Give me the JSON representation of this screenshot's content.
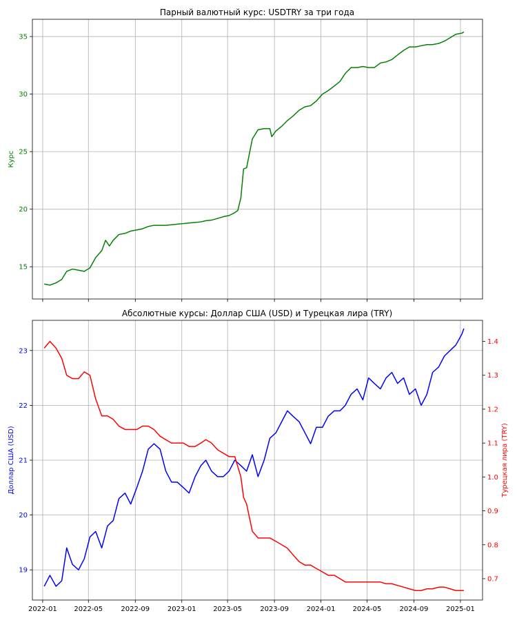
{
  "colors": {
    "pair": "#008000",
    "usd": "#0000ff",
    "try": "#ff0000",
    "grid": "#b0b0b0"
  },
  "chart_data": [
    {
      "type": "line",
      "title": "Парный валютный курс: USDTRY за три года",
      "ylabel": "Курс",
      "xlabel": "",
      "grid": true,
      "ylim": [
        12.2,
        36.5
      ],
      "yticks": [
        "15",
        "20",
        "25",
        "30",
        "35"
      ],
      "series": [
        {
          "color": "#008000",
          "x": [
            "2022-01-05",
            "2022-01-20",
            "2022-02-05",
            "2022-02-20",
            "2022-03-05",
            "2022-03-20",
            "2022-04-05",
            "2022-04-20",
            "2022-05-05",
            "2022-05-20",
            "2022-06-05",
            "2022-06-15",
            "2022-06-25",
            "2022-07-05",
            "2022-07-20",
            "2022-08-05",
            "2022-08-20",
            "2022-09-05",
            "2022-09-20",
            "2022-10-05",
            "2022-10-20",
            "2022-11-05",
            "2022-11-20",
            "2022-12-05",
            "2022-12-20",
            "2023-01-05",
            "2023-01-20",
            "2023-02-05",
            "2023-02-20",
            "2023-03-05",
            "2023-03-20",
            "2023-04-05",
            "2023-04-20",
            "2023-05-05",
            "2023-05-20",
            "2023-05-28",
            "2023-06-05",
            "2023-06-12",
            "2023-06-20",
            "2023-07-05",
            "2023-07-20",
            "2023-08-05",
            "2023-08-20",
            "2023-08-25",
            "2023-09-05",
            "2023-09-20",
            "2023-10-05",
            "2023-10-20",
            "2023-11-05",
            "2023-11-20",
            "2023-12-05",
            "2023-12-20",
            "2024-01-05",
            "2024-01-20",
            "2024-02-05",
            "2024-02-20",
            "2024-03-05",
            "2024-03-20",
            "2024-04-05",
            "2024-04-20",
            "2024-05-05",
            "2024-05-20",
            "2024-06-05",
            "2024-06-20",
            "2024-07-05",
            "2024-07-20",
            "2024-08-05",
            "2024-08-20",
            "2024-09-05",
            "2024-09-20",
            "2024-10-05",
            "2024-10-20",
            "2024-11-05",
            "2024-11-20",
            "2024-12-05",
            "2024-12-20",
            "2025-01-05",
            "2025-01-10"
          ],
          "values": [
            13.5,
            13.4,
            13.6,
            13.9,
            14.6,
            14.8,
            14.7,
            14.6,
            14.9,
            15.8,
            16.4,
            17.3,
            16.8,
            17.3,
            17.8,
            17.9,
            18.1,
            18.2,
            18.3,
            18.5,
            18.6,
            18.6,
            18.6,
            18.65,
            18.7,
            18.75,
            18.8,
            18.85,
            18.9,
            19.0,
            19.05,
            19.2,
            19.35,
            19.45,
            19.7,
            19.9,
            21.0,
            23.5,
            23.6,
            26.1,
            26.9,
            27.0,
            27.0,
            26.3,
            26.8,
            27.2,
            27.7,
            28.1,
            28.6,
            28.9,
            29.0,
            29.4,
            30.0,
            30.3,
            30.7,
            31.1,
            31.8,
            32.3,
            32.3,
            32.4,
            32.3,
            32.3,
            32.7,
            32.8,
            33.0,
            33.4,
            33.8,
            34.1,
            34.1,
            34.2,
            34.3,
            34.3,
            34.4,
            34.6,
            34.9,
            35.2,
            35.3,
            35.4
          ]
        }
      ]
    },
    {
      "type": "line",
      "title": "Абсолютные курсы: Доллар США (USD) и Турецкая лира (TRY)",
      "ylabel": "Доллар США (USD)",
      "ylabel_right": "Турецкая лира (TRY)",
      "xlabel": "",
      "grid": true,
      "ylim": [
        18.45,
        23.55
      ],
      "ylim_right": [
        0.637,
        1.462
      ],
      "yticks": [
        "19",
        "20",
        "21",
        "22",
        "23"
      ],
      "yticks_right": [
        "0.7",
        "0.8",
        "0.9",
        "1.0",
        "1.1",
        "1.2",
        "1.3",
        "1.4"
      ],
      "xticks": [
        "2022-01",
        "2022-05",
        "2022-09",
        "2023-01",
        "2023-05",
        "2023-09",
        "2024-01",
        "2024-05",
        "2024-09",
        "2025-01"
      ],
      "series": [
        {
          "color": "#0000ff",
          "axis": "left",
          "x": [
            "2022-01-05",
            "2022-01-20",
            "2022-02-05",
            "2022-02-20",
            "2022-03-05",
            "2022-03-20",
            "2022-04-05",
            "2022-04-20",
            "2022-05-05",
            "2022-05-20",
            "2022-06-05",
            "2022-06-20",
            "2022-07-05",
            "2022-07-20",
            "2022-08-05",
            "2022-08-20",
            "2022-09-05",
            "2022-09-20",
            "2022-10-05",
            "2022-10-20",
            "2022-11-05",
            "2022-11-20",
            "2022-12-05",
            "2022-12-20",
            "2023-01-05",
            "2023-01-20",
            "2023-02-05",
            "2023-02-20",
            "2023-03-05",
            "2023-03-20",
            "2023-04-05",
            "2023-04-20",
            "2023-05-05",
            "2023-05-20",
            "2023-06-05",
            "2023-06-20",
            "2023-07-05",
            "2023-07-20",
            "2023-08-05",
            "2023-08-20",
            "2023-09-05",
            "2023-09-20",
            "2023-10-05",
            "2023-10-20",
            "2023-11-05",
            "2023-11-20",
            "2023-12-05",
            "2023-12-20",
            "2024-01-05",
            "2024-01-20",
            "2024-02-05",
            "2024-02-20",
            "2024-03-05",
            "2024-03-20",
            "2024-04-05",
            "2024-04-20",
            "2024-05-05",
            "2024-05-20",
            "2024-06-05",
            "2024-06-20",
            "2024-07-05",
            "2024-07-20",
            "2024-08-05",
            "2024-08-20",
            "2024-09-05",
            "2024-09-20",
            "2024-10-05",
            "2024-10-20",
            "2024-11-05",
            "2024-11-20",
            "2024-12-05",
            "2024-12-20",
            "2025-01-05",
            "2025-01-10"
          ],
          "values": [
            18.7,
            18.9,
            18.7,
            18.8,
            19.4,
            19.1,
            19.0,
            19.2,
            19.6,
            19.7,
            19.4,
            19.8,
            19.9,
            20.3,
            20.4,
            20.2,
            20.5,
            20.8,
            21.2,
            21.3,
            21.2,
            20.8,
            20.6,
            20.6,
            20.5,
            20.4,
            20.7,
            20.9,
            21.0,
            20.8,
            20.7,
            20.7,
            20.8,
            21.0,
            20.9,
            20.8,
            21.1,
            20.7,
            21.0,
            21.4,
            21.5,
            21.7,
            21.9,
            21.8,
            21.7,
            21.5,
            21.3,
            21.6,
            21.6,
            21.8,
            21.9,
            21.9,
            22.0,
            22.2,
            22.3,
            22.1,
            22.5,
            22.4,
            22.3,
            22.5,
            22.6,
            22.4,
            22.5,
            22.2,
            22.3,
            22.0,
            22.2,
            22.6,
            22.7,
            22.9,
            23.0,
            23.1,
            23.3,
            23.4
          ]
        },
        {
          "color": "#ff0000",
          "axis": "right",
          "x": [
            "2022-01-05",
            "2022-01-20",
            "2022-02-05",
            "2022-02-20",
            "2022-03-05",
            "2022-03-20",
            "2022-04-05",
            "2022-04-20",
            "2022-05-05",
            "2022-05-20",
            "2022-06-05",
            "2022-06-20",
            "2022-07-05",
            "2022-07-20",
            "2022-08-05",
            "2022-08-20",
            "2022-09-05",
            "2022-09-20",
            "2022-10-05",
            "2022-10-20",
            "2022-11-05",
            "2022-11-20",
            "2022-12-05",
            "2022-12-20",
            "2023-01-05",
            "2023-01-20",
            "2023-02-05",
            "2023-02-20",
            "2023-03-05",
            "2023-03-20",
            "2023-04-05",
            "2023-04-20",
            "2023-05-05",
            "2023-05-20",
            "2023-06-05",
            "2023-06-12",
            "2023-06-20",
            "2023-07-05",
            "2023-07-20",
            "2023-08-05",
            "2023-08-20",
            "2023-09-05",
            "2023-09-20",
            "2023-10-05",
            "2023-10-20",
            "2023-11-05",
            "2023-11-20",
            "2023-12-05",
            "2023-12-20",
            "2024-01-05",
            "2024-01-20",
            "2024-02-05",
            "2024-02-20",
            "2024-03-05",
            "2024-03-20",
            "2024-04-05",
            "2024-04-20",
            "2024-05-05",
            "2024-05-20",
            "2024-06-05",
            "2024-06-20",
            "2024-07-05",
            "2024-07-20",
            "2024-08-05",
            "2024-08-20",
            "2024-09-05",
            "2024-09-20",
            "2024-10-05",
            "2024-10-20",
            "2024-11-05",
            "2024-11-20",
            "2024-12-05",
            "2024-12-20",
            "2025-01-05",
            "2025-01-10"
          ],
          "values": [
            1.38,
            1.4,
            1.38,
            1.35,
            1.3,
            1.29,
            1.29,
            1.31,
            1.3,
            1.23,
            1.18,
            1.18,
            1.17,
            1.15,
            1.14,
            1.14,
            1.14,
            1.15,
            1.15,
            1.14,
            1.12,
            1.11,
            1.1,
            1.1,
            1.1,
            1.09,
            1.09,
            1.1,
            1.11,
            1.1,
            1.08,
            1.07,
            1.06,
            1.06,
            1.0,
            0.94,
            0.92,
            0.84,
            0.82,
            0.82,
            0.82,
            0.81,
            0.8,
            0.79,
            0.77,
            0.75,
            0.74,
            0.74,
            0.73,
            0.72,
            0.71,
            0.71,
            0.7,
            0.69,
            0.69,
            0.69,
            0.69,
            0.69,
            0.69,
            0.69,
            0.685,
            0.685,
            0.68,
            0.675,
            0.67,
            0.665,
            0.665,
            0.67,
            0.67,
            0.675,
            0.675,
            0.67,
            0.665,
            0.665,
            0.665
          ]
        }
      ]
    }
  ]
}
